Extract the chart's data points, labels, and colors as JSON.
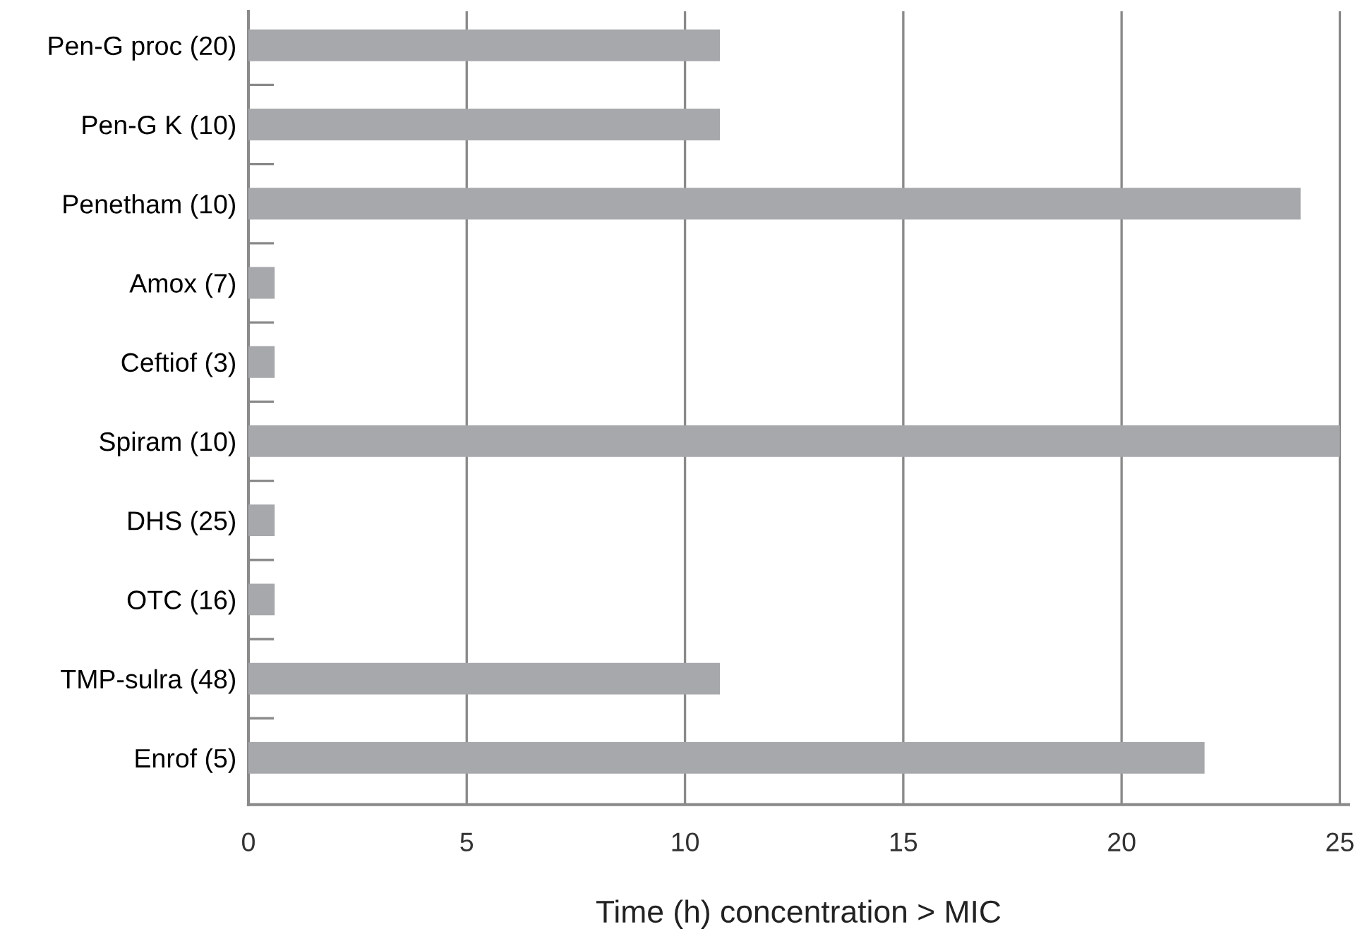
{
  "chart_data": {
    "type": "bar",
    "orientation": "horizontal",
    "xlabel": "Time (h) concentration > MIC",
    "categories": [
      "Pen-G proc (20)",
      "Pen-G K (10)",
      "Penetham (10)",
      "Amox (7)",
      "Ceftiof (3)",
      "Spiram (10)",
      "DHS (25)",
      "OTC (16)",
      "TMP-sulra (48)",
      "Enrof (5)"
    ],
    "values": [
      10.8,
      10.8,
      24.1,
      0.6,
      0.6,
      25,
      0.6,
      0.6,
      10.8,
      21.9
    ],
    "color": "#a7a8ab",
    "xlim": [
      0,
      25.2
    ],
    "xticks": [
      0,
      5,
      10,
      15,
      20,
      25
    ],
    "grid": "x"
  }
}
